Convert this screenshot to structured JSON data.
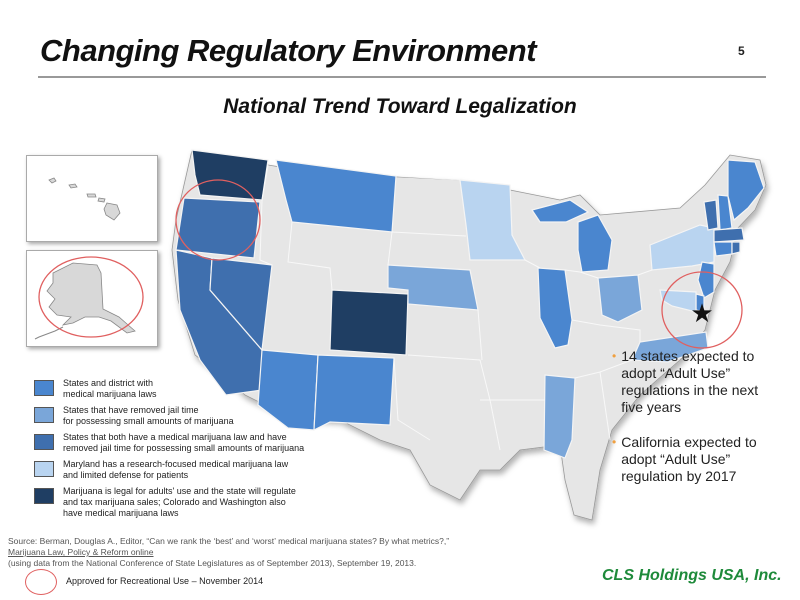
{
  "slide": {
    "title": "Changing Regulatory Environment",
    "page_number": "5",
    "subtitle": "National Trend Toward Legalization"
  },
  "map": {
    "base_color": "#e6e6e6",
    "categories": [
      {
        "id": "medical",
        "label_line1": "States and district with",
        "label_line2": "medical marijuana laws",
        "color": "#4a86cf"
      },
      {
        "id": "decriminalized",
        "label_line1": "States that have removed jail time",
        "label_line2": "for possessing small amounts of marijuana",
        "color": "#7aa6d9"
      },
      {
        "id": "both",
        "label_line1": "States that both have  a medical marijuana law and have",
        "label_line2": "removed jail time for possessing small amounts of marijuana",
        "color": "#3f6fae"
      },
      {
        "id": "maryland",
        "label_line1": "Maryland has a research-focused medical marijuana law",
        "label_line2": "and limited defense for patients",
        "color": "#b9d4f0"
      },
      {
        "id": "legal",
        "label_line1": "Marijuana is legal for adults' use and the state will regulate",
        "label_line2": "and tax  marijuana sales; Colorado and Washington also",
        "label_line3": "have medical marijuana laws",
        "color": "#1f3e63"
      }
    ],
    "recreational_circle_color": "#e06060",
    "recreational_key_label": "Approved for Recreational Use – November 2014"
  },
  "bullets": [
    {
      "lines": [
        "14 states expected to",
        "adopt “Adult Use”",
        "regulations in the next",
        "five years"
      ]
    },
    {
      "lines": [
        "California expected to",
        "adopt “Adult Use”",
        "regulation by 2017"
      ]
    }
  ],
  "source": {
    "line1": "Source: Berman, Douglas A., Editor, “Can we rank the ‘best’ and ‘worst’ medical marijuana states?  By what metrics?,”",
    "line2": "Marijuana Law, Policy & Reform online",
    "line3": "(using data from the National Conference of State Legislatures as of September 2013), September 19, 2013."
  },
  "brand": {
    "name": "CLS Holdings USA, Inc.",
    "color": "#1e8a3a"
  }
}
